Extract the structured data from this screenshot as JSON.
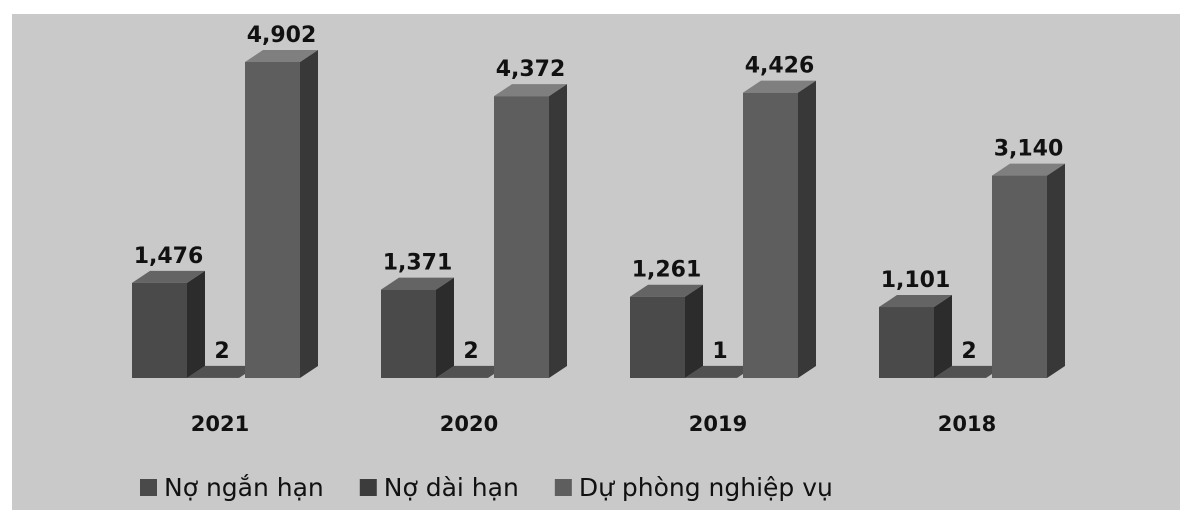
{
  "chart_data": {
    "type": "bar3d",
    "categories": [
      "2021",
      "2020",
      "2019",
      "2018"
    ],
    "series": [
      {
        "name": "Nợ ngắn hạn",
        "color": "#4a4a4a",
        "values": [
          1476,
          1371,
          1261,
          1101
        ],
        "value_labels": [
          "1,476",
          "1,371",
          "1,261",
          "1,101"
        ]
      },
      {
        "name": "Nợ dài hạn",
        "color": "#3c3c3c",
        "values": [
          2,
          2,
          1,
          2
        ]
      },
      {
        "name": "Dự phòng nghiệp vụ",
        "color": "#5e5e5e",
        "values": [
          4902,
          4372,
          4426,
          3140
        ],
        "value_labels": [
          "4,902",
          "4,372",
          "4,426",
          "3,140"
        ]
      }
    ],
    "legend": "bottom"
  }
}
